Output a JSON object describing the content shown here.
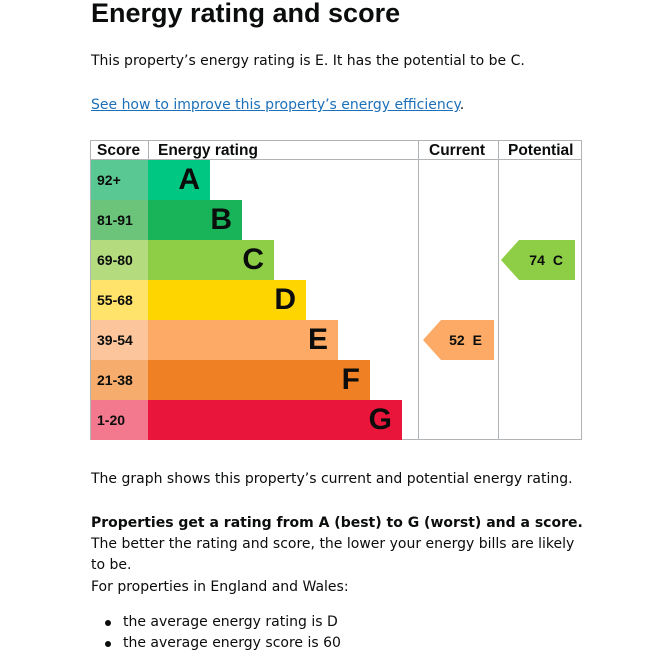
{
  "page": {
    "title": "Energy rating and score",
    "summary": "This property’s energy rating is E. It has the potential to be C.",
    "improve_link": "See how to improve this property’s energy efficiency",
    "improve_suffix": ".",
    "graph_description": "The graph shows this property’s current and potential energy rating.",
    "explain_bold": "Properties get a rating from A (best) to G (worst) and a score.",
    "explain_rest": " The better the rating and score, the lower your energy bills are likely to be.",
    "region_intro": "For properties in England and Wales:",
    "bullets": [
      "the average energy rating is D",
      "the average energy score is 60"
    ]
  },
  "chart_data": {
    "type": "table",
    "headers": {
      "score": "Score",
      "rating": "Energy rating",
      "current": "Current",
      "potential": "Potential"
    },
    "bands": [
      {
        "letter": "A",
        "range": "92+",
        "min": 92,
        "score_color": "#5ac892",
        "bar_color": "#00c781"
      },
      {
        "letter": "B",
        "range": "81-91",
        "min": 81,
        "score_color": "#6bc47a",
        "bar_color": "#19b459"
      },
      {
        "letter": "C",
        "range": "69-80",
        "min": 69,
        "score_color": "#b4dc7e",
        "bar_color": "#8dce46"
      },
      {
        "letter": "D",
        "range": "55-68",
        "min": 55,
        "score_color": "#ffe36a",
        "bar_color": "#ffd500"
      },
      {
        "letter": "E",
        "range": "39-54",
        "min": 39,
        "score_color": "#fcc59b",
        "bar_color": "#fcaa65"
      },
      {
        "letter": "F",
        "range": "21-38",
        "min": 21,
        "score_color": "#f5ac6d",
        "bar_color": "#ef8023"
      },
      {
        "letter": "G",
        "range": "1-20",
        "min": 1,
        "score_color": "#f37a8e",
        "bar_color": "#e9153b"
      }
    ],
    "current": {
      "score": "52",
      "letter": "E",
      "color": "#fcaa65"
    },
    "potential": {
      "score": "74",
      "letter": "C",
      "color": "#8dce46"
    }
  }
}
